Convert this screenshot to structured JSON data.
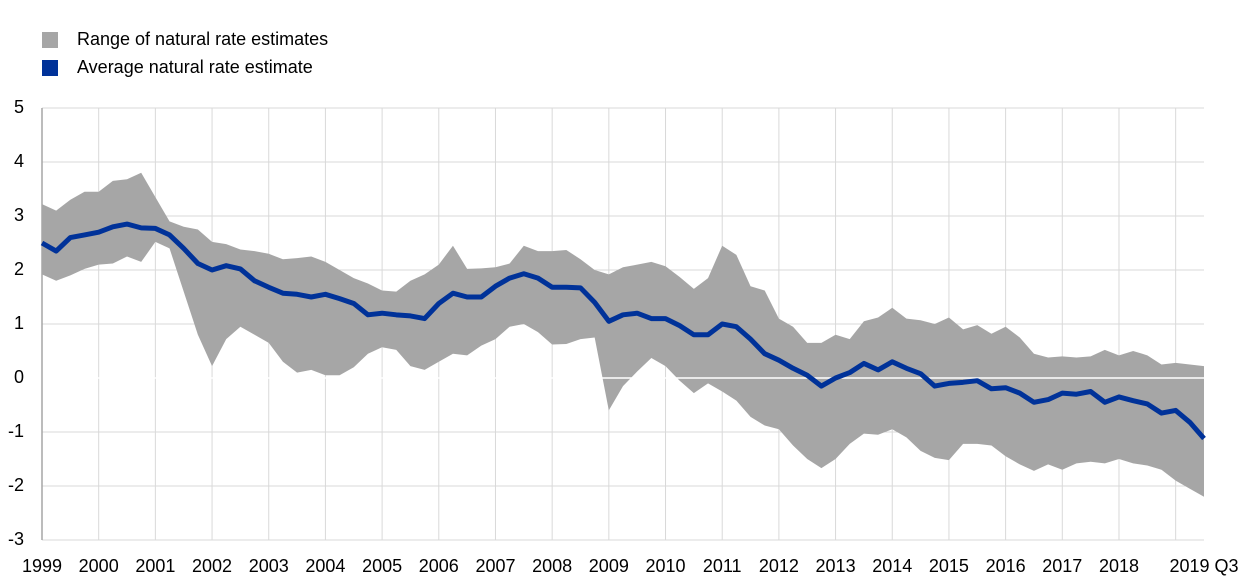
{
  "chart_data": {
    "type": "line",
    "categories": [
      "1999",
      null,
      null,
      null,
      "2000",
      null,
      null,
      null,
      "2001",
      null,
      null,
      null,
      "2002",
      null,
      null,
      null,
      "2003",
      null,
      null,
      null,
      "2004",
      null,
      null,
      null,
      "2005",
      null,
      null,
      null,
      "2006",
      null,
      null,
      null,
      "2007",
      null,
      null,
      null,
      "2008",
      null,
      null,
      null,
      "2009",
      null,
      null,
      null,
      "2010",
      null,
      null,
      null,
      "2011",
      null,
      null,
      null,
      "2012",
      null,
      null,
      null,
      "2013",
      null,
      null,
      null,
      "2014",
      null,
      null,
      null,
      "2015",
      null,
      null,
      null,
      "2016",
      null,
      null,
      null,
      "2017",
      null,
      null,
      null,
      "2018",
      null,
      null,
      null,
      null,
      null,
      "2019 Q3"
    ],
    "series": [
      {
        "name": "Range of natural rate estimates",
        "color": "#a6a6a6",
        "high": [
          3.22,
          3.1,
          3.3,
          3.45,
          3.45,
          3.65,
          3.68,
          3.8,
          3.35,
          2.9,
          2.8,
          2.75,
          2.52,
          2.48,
          2.38,
          2.35,
          2.3,
          2.2,
          2.22,
          2.25,
          2.15,
          2.0,
          1.85,
          1.75,
          1.62,
          1.6,
          1.8,
          1.92,
          2.1,
          2.45,
          2.02,
          2.03,
          2.05,
          2.12,
          2.45,
          2.35,
          2.35,
          2.37,
          2.2,
          2.0,
          1.92,
          2.05,
          2.1,
          2.15,
          2.07,
          1.87,
          1.65,
          1.85,
          2.45,
          2.28,
          1.7,
          1.62,
          1.1,
          0.95,
          0.65,
          0.65,
          0.8,
          0.72,
          1.05,
          1.12,
          1.3,
          1.1,
          1.07,
          1.0,
          1.12,
          0.9,
          0.98,
          0.82,
          0.95,
          0.75,
          0.45,
          0.38,
          0.4,
          0.38,
          0.4,
          0.52,
          0.42,
          0.5,
          0.42,
          0.25,
          0.28,
          0.25,
          0.22
        ],
        "low": [
          1.92,
          1.8,
          1.9,
          2.02,
          2.1,
          2.12,
          2.25,
          2.15,
          2.52,
          2.4,
          1.6,
          0.8,
          0.22,
          0.72,
          0.95,
          0.8,
          0.65,
          0.3,
          0.1,
          0.15,
          0.05,
          0.05,
          0.2,
          0.45,
          0.57,
          0.52,
          0.22,
          0.15,
          0.3,
          0.45,
          0.42,
          0.6,
          0.72,
          0.95,
          1.0,
          0.85,
          0.62,
          0.63,
          0.72,
          0.75,
          -0.6,
          -0.15,
          0.12,
          0.37,
          0.22,
          -0.05,
          -0.28,
          -0.1,
          -0.25,
          -0.42,
          -0.72,
          -0.88,
          -0.95,
          -1.25,
          -1.5,
          -1.67,
          -1.5,
          -1.22,
          -1.03,
          -1.05,
          -0.95,
          -1.1,
          -1.35,
          -1.48,
          -1.52,
          -1.22,
          -1.22,
          -1.25,
          -1.45,
          -1.6,
          -1.72,
          -1.6,
          -1.7,
          -1.58,
          -1.55,
          -1.58,
          -1.5,
          -1.58,
          -1.62,
          -1.7,
          -1.9,
          -2.05,
          -2.2
        ]
      },
      {
        "name": "Average natural rate estimate",
        "color": "#003299",
        "values": [
          2.5,
          2.35,
          2.6,
          2.65,
          2.7,
          2.8,
          2.85,
          2.78,
          2.77,
          2.65,
          2.4,
          2.12,
          2.0,
          2.08,
          2.02,
          1.8,
          1.68,
          1.57,
          1.55,
          1.5,
          1.55,
          1.47,
          1.38,
          1.17,
          1.2,
          1.17,
          1.15,
          1.1,
          1.38,
          1.57,
          1.5,
          1.5,
          1.7,
          1.85,
          1.93,
          1.85,
          1.68,
          1.68,
          1.67,
          1.4,
          1.05,
          1.17,
          1.2,
          1.1,
          1.1,
          0.97,
          0.8,
          0.8,
          1.0,
          0.95,
          0.72,
          0.45,
          0.33,
          0.18,
          0.05,
          -0.15,
          0.0,
          0.1,
          0.27,
          0.15,
          0.3,
          0.18,
          0.08,
          -0.15,
          -0.1,
          -0.08,
          -0.05,
          -0.2,
          -0.18,
          -0.28,
          -0.45,
          -0.4,
          -0.28,
          -0.3,
          -0.25,
          -0.45,
          -0.35,
          -0.42,
          -0.48,
          -0.65,
          -0.6,
          -0.82,
          -1.12
        ]
      }
    ],
    "ylim": [
      -3,
      5
    ],
    "yticks": [
      -3,
      -2,
      -1,
      0,
      1,
      2,
      3,
      4,
      5
    ],
    "grid": true,
    "legend": "top-left"
  }
}
